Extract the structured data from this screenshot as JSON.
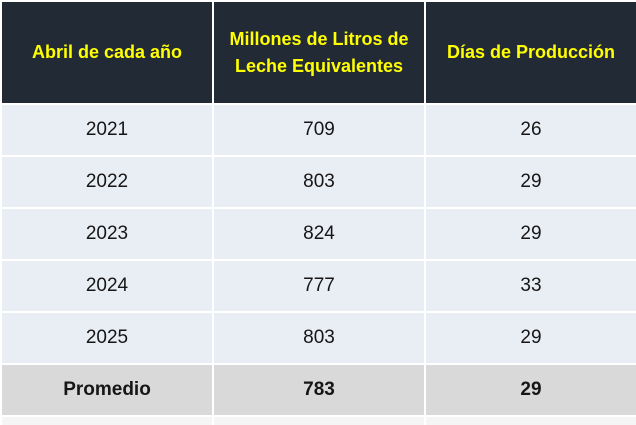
{
  "chart_data": {
    "type": "table",
    "columns": [
      "Abril de cada año",
      "Millones de Litros de Leche Equivalentes",
      "Días de Producción"
    ],
    "rows": [
      [
        "2021",
        "709",
        "26"
      ],
      [
        "2022",
        "803",
        "29"
      ],
      [
        "2023",
        "824",
        "29"
      ],
      [
        "2024",
        "777",
        "33"
      ],
      [
        "2025",
        "803",
        "29"
      ]
    ],
    "summary_row": [
      "Promedio",
      "783",
      "29"
    ]
  },
  "colors": {
    "header_bg": "#222A35",
    "header_text": "#FFFF00",
    "row_bg": "#E9EDF4",
    "summary_bg": "#D9D9D9",
    "stub_bg": "#F5F5F5",
    "body_text": "#161616",
    "grid": "#FFFFFF"
  }
}
